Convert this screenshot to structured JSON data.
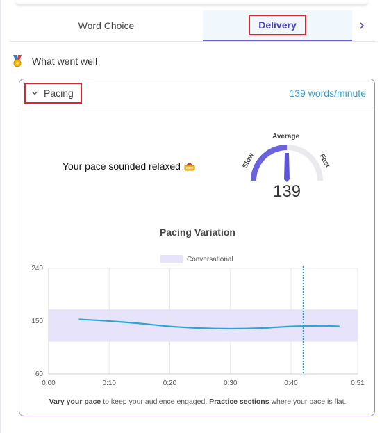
{
  "tabs": {
    "word_choice": "Word Choice",
    "delivery": "Delivery",
    "next_icon": "chevron-right-icon"
  },
  "section": {
    "title": "What went well",
    "icon": "medal-icon"
  },
  "pacing": {
    "toggle_label": "Pacing",
    "rate": "139 words/minute",
    "summary": "Your pace sounded relaxed",
    "summary_icon": "sleeping-emoji-icon"
  },
  "gauge": {
    "top_label": "Average",
    "left_label": "Slow",
    "right_label": "Fast",
    "value": "139",
    "fill_color": "#6b62e0",
    "track_color": "#e9e9ee"
  },
  "chart_data": {
    "type": "line",
    "title": "Pacing Variation",
    "xlabel": "",
    "ylabel": "",
    "x_ticks": [
      "0:00",
      "0:10",
      "0:20",
      "0:30",
      "0:40",
      "0:51"
    ],
    "y_ticks": [
      "60",
      "150",
      "240"
    ],
    "ylim": [
      60,
      240
    ],
    "xlim_seconds": [
      0,
      51
    ],
    "legend": {
      "label": "Conversational",
      "placement": "top-center"
    },
    "band": {
      "name": "Conversational",
      "low": 115,
      "high": 170,
      "color": "#e6e3fb"
    },
    "series": [
      {
        "color": "#2aa6d6",
        "points": [
          {
            "t": "0:05",
            "wpm": 153
          },
          {
            "t": "0:10",
            "wpm": 150
          },
          {
            "t": "0:15",
            "wpm": 146
          },
          {
            "t": "0:20",
            "wpm": 141
          },
          {
            "t": "0:25",
            "wpm": 138
          },
          {
            "t": "0:30",
            "wpm": 137
          },
          {
            "t": "0:35",
            "wpm": 138
          },
          {
            "t": "0:40",
            "wpm": 141
          },
          {
            "t": "0:45",
            "wpm": 142
          },
          {
            "t": "0:48",
            "wpm": 141
          }
        ]
      }
    ],
    "marker": {
      "t": "0:42",
      "style": "dotted",
      "color": "#2a9fd0"
    },
    "grid": true
  },
  "footnote": {
    "part1": "Vary your pace",
    "part2": " to keep your audience engaged. ",
    "part3": "Practice sections",
    "part4": " where your pace is flat."
  }
}
